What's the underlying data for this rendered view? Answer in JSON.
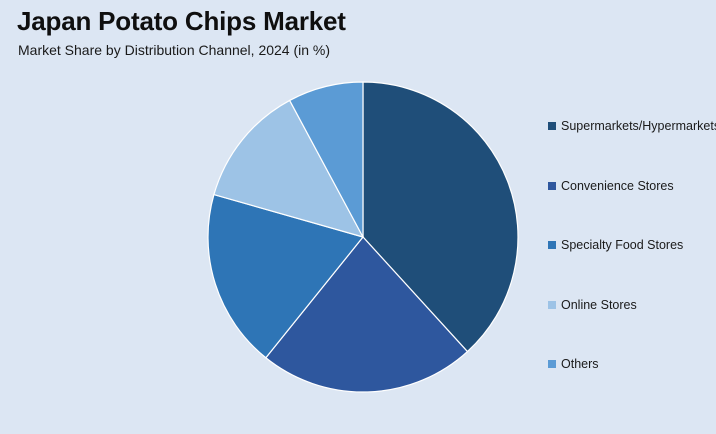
{
  "chart_data": {
    "type": "pie",
    "title": "Japan Potato Chips Market",
    "subtitle": "Market Share by Distribution Channel, 2024 (in %)",
    "categories": [
      "Supermarkets/Hypermarkets",
      "Convenience Stores",
      "Specialty Food Stores",
      "Online Stores",
      "Others"
    ],
    "values": [
      39,
      23,
      19,
      13,
      8
    ],
    "unit": "%",
    "start_angle_deg": 0,
    "direction": "clockwise",
    "legend_position": "right",
    "colors": [
      "#1f4e79",
      "#2e579e",
      "#2e75b6",
      "#9dc3e6",
      "#5b9bd5"
    ]
  },
  "legend_label_display": [
    "Supermarkets/Hypermarkets",
    "Convenience Stores",
    "Specialty Food Stores",
    "Online Stores",
    "Others"
  ]
}
